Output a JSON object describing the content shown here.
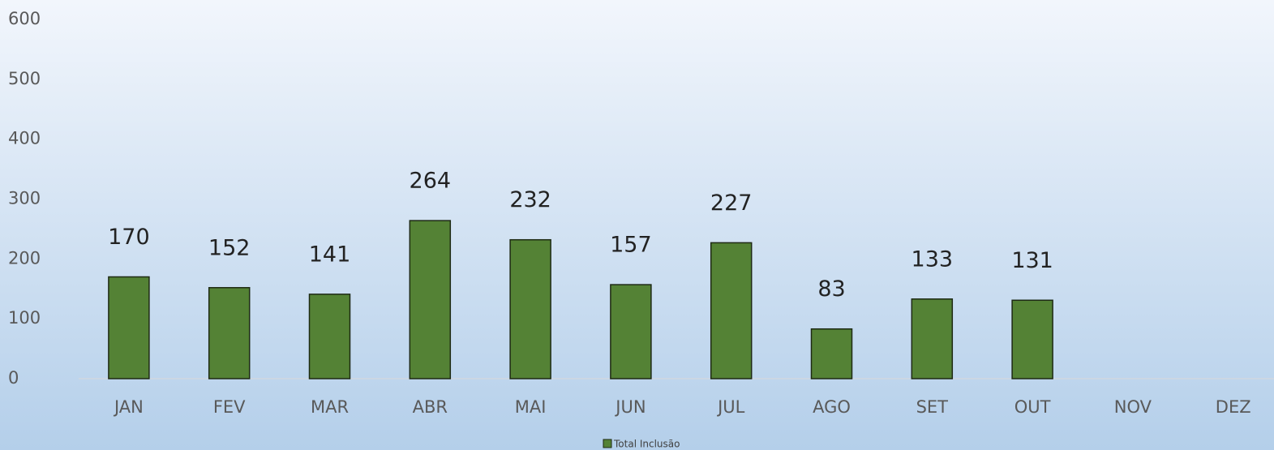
{
  "chart_data": {
    "type": "bar",
    "categories": [
      "JAN",
      "FEV",
      "MAR",
      "ABR",
      "MAI",
      "JUN",
      "JUL",
      "AGO",
      "SET",
      "OUT",
      "NOV",
      "DEZ"
    ],
    "series": [
      {
        "name": "Total Inclusão",
        "color": "#548235",
        "values": [
          170,
          152,
          141,
          264,
          232,
          157,
          227,
          83,
          133,
          131,
          null,
          null
        ]
      }
    ],
    "ylim": [
      0,
      600
    ],
    "yticks": [
      0,
      100,
      200,
      300,
      400,
      500,
      600
    ],
    "legend": "bottom"
  }
}
